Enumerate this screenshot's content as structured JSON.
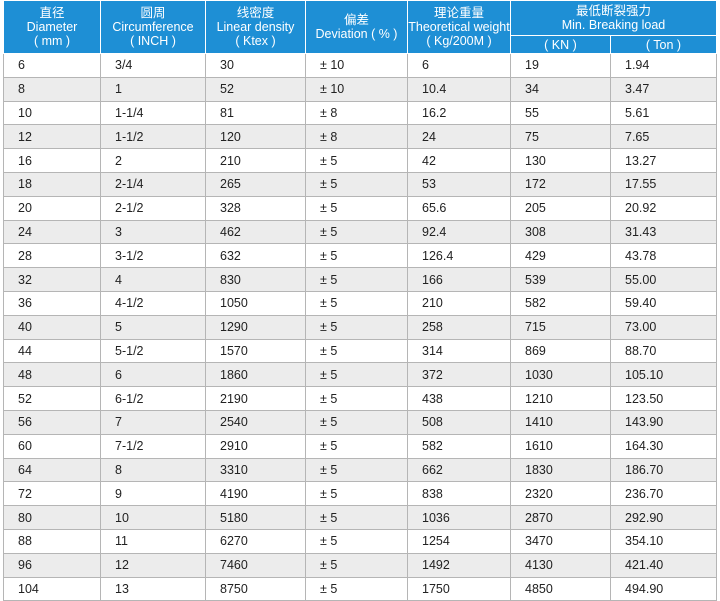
{
  "table": {
    "headers": [
      {
        "lines": [
          "直径",
          "Diameter",
          "( mm )"
        ]
      },
      {
        "lines": [
          "圆周",
          "Circumference",
          "( INCH )"
        ]
      },
      {
        "lines": [
          "线密度",
          "Linear density",
          "( Ktex )"
        ]
      },
      {
        "lines": [
          "偏差",
          "Deviation ( % )"
        ]
      },
      {
        "lines": [
          "理论重量",
          "Theoretical weight",
          "( Kg/200M )"
        ]
      },
      {
        "lines": [
          "最低断裂强力",
          "Min. Breaking load"
        ],
        "sub": [
          "( KN )",
          "( Ton )"
        ]
      }
    ],
    "rows": [
      [
        "6",
        "3/4",
        "30",
        "± 10",
        "6",
        "19",
        "1.94"
      ],
      [
        "8",
        "1",
        "52",
        "± 10",
        "10.4",
        "34",
        "3.47"
      ],
      [
        "10",
        "1-1/4",
        "81",
        "± 8",
        "16.2",
        "55",
        "5.61"
      ],
      [
        "12",
        "1-1/2",
        "120",
        "± 8",
        "24",
        "75",
        "7.65"
      ],
      [
        "16",
        "2",
        "210",
        "± 5",
        "42",
        "130",
        "13.27"
      ],
      [
        "18",
        "2-1/4",
        "265",
        "± 5",
        "53",
        "172",
        "17.55"
      ],
      [
        "20",
        "2-1/2",
        "328",
        "± 5",
        "65.6",
        "205",
        "20.92"
      ],
      [
        "24",
        "3",
        "462",
        "± 5",
        "92.4",
        "308",
        "31.43"
      ],
      [
        "28",
        "3-1/2",
        "632",
        "± 5",
        "126.4",
        "429",
        "43.78"
      ],
      [
        "32",
        "4",
        "830",
        "± 5",
        "166",
        "539",
        "55.00"
      ],
      [
        "36",
        "4-1/2",
        "1050",
        "± 5",
        "210",
        "582",
        "59.40"
      ],
      [
        "40",
        "5",
        "1290",
        "± 5",
        "258",
        "715",
        "73.00"
      ],
      [
        "44",
        "5-1/2",
        "1570",
        "± 5",
        "314",
        "869",
        "88.70"
      ],
      [
        "48",
        "6",
        "1860",
        "± 5",
        "372",
        "1030",
        "105.10"
      ],
      [
        "52",
        "6-1/2",
        "2190",
        "± 5",
        "438",
        "1210",
        "123.50"
      ],
      [
        "56",
        "7",
        "2540",
        "± 5",
        "508",
        "1410",
        "143.90"
      ],
      [
        "60",
        "7-1/2",
        "2910",
        "± 5",
        "582",
        "1610",
        "164.30"
      ],
      [
        "64",
        "8",
        "3310",
        "± 5",
        "662",
        "1830",
        "186.70"
      ],
      [
        "72",
        "9",
        "4190",
        "± 5",
        "838",
        "2320",
        "236.70"
      ],
      [
        "80",
        "10",
        "5180",
        "± 5",
        "1036",
        "2870",
        "292.90"
      ],
      [
        "88",
        "11",
        "6270",
        "± 5",
        "1254",
        "3470",
        "354.10"
      ],
      [
        "96",
        "12",
        "7460",
        "± 5",
        "1492",
        "4130",
        "421.40"
      ],
      [
        "104",
        "13",
        "8750",
        "± 5",
        "1750",
        "4850",
        "494.90"
      ]
    ]
  }
}
